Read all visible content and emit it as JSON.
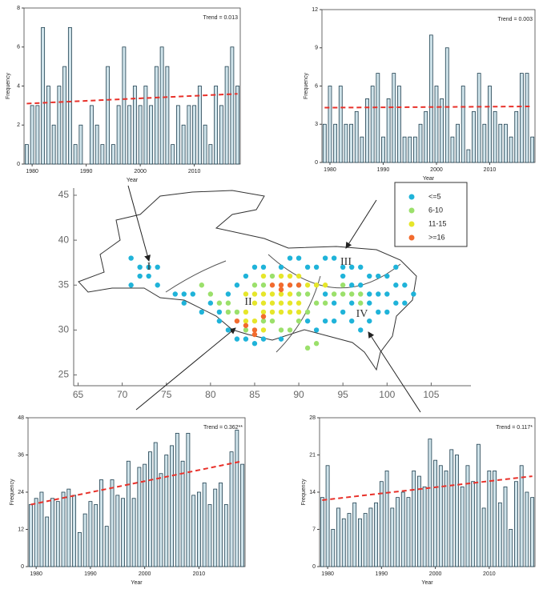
{
  "chart_data": [
    {
      "type": "bar",
      "ylabel": "Frequency",
      "xlabel": "Year",
      "annotation": "Trend = 0.013",
      "color": "#cfe3ea",
      "x": [
        1979,
        1980,
        1981,
        1982,
        1983,
        1984,
        1985,
        1986,
        1987,
        1988,
        1989,
        1990,
        1991,
        1992,
        1993,
        1994,
        1995,
        1996,
        1997,
        1998,
        1999,
        2000,
        2001,
        2002,
        2003,
        2004,
        2005,
        2006,
        2007,
        2008,
        2009,
        2010,
        2011,
        2012,
        2013,
        2014,
        2015,
        2016,
        2017,
        2018
      ],
      "values": [
        1,
        3,
        3,
        7,
        4,
        2,
        4,
        5,
        7,
        1,
        2,
        0,
        3,
        2,
        1,
        5,
        1,
        3,
        6,
        3,
        4,
        3,
        4,
        3,
        5,
        6,
        5,
        1,
        3,
        2,
        3,
        3,
        4,
        2,
        1,
        4,
        3,
        5,
        6,
        4
      ],
      "trend": {
        "x": [
          1979,
          2018
        ],
        "values": [
          3.1,
          3.6
        ],
        "color": "#e8312a"
      },
      "xlim": [
        1978.5,
        2018.5
      ],
      "xticks": [
        1980,
        1990,
        2000,
        2010
      ],
      "ylim": [
        0,
        8
      ],
      "yticks": [
        0,
        2,
        4,
        6,
        8
      ]
    },
    {
      "type": "bar",
      "ylabel": "Frequency",
      "xlabel": "Year",
      "annotation": "Trend = 0.003",
      "color": "#cfe3ea",
      "x": [
        1979,
        1980,
        1981,
        1982,
        1983,
        1984,
        1985,
        1986,
        1987,
        1988,
        1989,
        1990,
        1991,
        1992,
        1993,
        1994,
        1995,
        1996,
        1997,
        1998,
        1999,
        2000,
        2001,
        2002,
        2003,
        2004,
        2005,
        2006,
        2007,
        2008,
        2009,
        2010,
        2011,
        2012,
        2013,
        2014,
        2015,
        2016,
        2017,
        2018
      ],
      "values": [
        3,
        6,
        3,
        6,
        3,
        3,
        4,
        2,
        5,
        6,
        7,
        2,
        5,
        7,
        6,
        2,
        2,
        2,
        3,
        4,
        10,
        6,
        5,
        9,
        2,
        3,
        6,
        1,
        4,
        7,
        3,
        6,
        4,
        3,
        3,
        2,
        4,
        7,
        7,
        2
      ],
      "trend": {
        "x": [
          1979,
          2018
        ],
        "values": [
          4.3,
          4.4
        ],
        "color": "#e8312a"
      },
      "xlim": [
        1978.5,
        2018.5
      ],
      "xticks": [
        1980,
        1990,
        2000,
        2010
      ],
      "ylim": [
        0,
        12
      ],
      "yticks": [
        0,
        3,
        6,
        9,
        12
      ]
    },
    {
      "type": "scatter",
      "xlim": [
        64.5,
        109.5
      ],
      "ylim": [
        23.8,
        45.8
      ],
      "xticks": [
        65,
        70,
        75,
        80,
        85,
        90,
        95,
        100,
        105
      ],
      "yticks": [
        25,
        30,
        35,
        40,
        45
      ],
      "annotations": [
        "I",
        "II",
        "III",
        "IV"
      ],
      "series": [
        {
          "name": "<=5",
          "color": "#1fb3d9",
          "x": [
            71,
            72,
            73,
            74,
            72,
            73,
            71,
            74,
            76,
            77,
            78,
            77,
            79,
            80,
            81,
            81,
            82,
            83,
            84,
            85,
            86,
            88,
            90,
            91,
            92,
            93,
            94,
            95,
            96,
            97,
            98,
            99,
            100,
            101,
            102,
            103,
            102,
            101,
            100,
            99,
            98,
            97,
            96,
            95,
            94,
            93,
            92,
            91,
            96,
            97,
            98,
            99,
            100,
            98,
            96,
            94,
            93,
            95,
            101,
            82,
            83,
            84,
            85,
            86,
            88,
            89,
            90
          ],
          "values": [
            38,
            37,
            37,
            37,
            36,
            36,
            35,
            35,
            34,
            34,
            34,
            33,
            32,
            33,
            32,
            31,
            30,
            29,
            29,
            28.5,
            29,
            29,
            35,
            37,
            37,
            38,
            38,
            37,
            37,
            37,
            36,
            36,
            36,
            35,
            35,
            34,
            33,
            33,
            32,
            32,
            31,
            30,
            31,
            32,
            31,
            31,
            30,
            31,
            35,
            35,
            34,
            34,
            34,
            33,
            33,
            33,
            34,
            36,
            37,
            34,
            35,
            36,
            37,
            37,
            37,
            38,
            38
          ]
        },
        {
          "name": "6-10",
          "color": "#9be06b",
          "x": [
            79,
            80,
            81,
            82,
            82,
            83,
            84,
            86,
            87,
            88,
            89,
            90,
            91,
            92,
            93,
            94,
            95,
            96,
            97,
            90,
            91,
            86,
            85,
            87,
            91,
            92,
            95,
            97
          ],
          "values": [
            35,
            34,
            33,
            33,
            32,
            32,
            30,
            31,
            31,
            30,
            30,
            31,
            32,
            33,
            33,
            34,
            34,
            34,
            33,
            34,
            34,
            35,
            35,
            36,
            28,
            28.5,
            35,
            34
          ]
        },
        {
          "name": "11-15",
          "color": "#e6e62a",
          "x": [
            84,
            85,
            86,
            87,
            88,
            89,
            85,
            86,
            87,
            88,
            89,
            90,
            86,
            87,
            88,
            89,
            90,
            84,
            84,
            86,
            88,
            89,
            90,
            91,
            92,
            93,
            86,
            85
          ],
          "values": [
            34,
            34,
            34,
            34,
            34,
            34,
            33,
            33,
            33,
            33,
            33,
            33,
            32,
            32,
            32,
            32,
            32,
            32,
            31,
            36,
            36,
            36,
            36,
            35,
            35,
            35,
            30,
            31
          ]
        },
        {
          "name": ">=16",
          "color": "#f26b2e",
          "x": [
            87,
            88,
            89,
            90,
            88,
            83,
            84,
            85,
            85,
            86
          ],
          "values": [
            35,
            35,
            35,
            35,
            34.5,
            31,
            30.5,
            30,
            29.5,
            31.5
          ]
        }
      ]
    },
    {
      "type": "bar",
      "ylabel": "Frequency",
      "xlabel": "Year",
      "annotation": "Trend = 0.362**",
      "color": "#cfe3ea",
      "x": [
        1979,
        1980,
        1981,
        1982,
        1983,
        1984,
        1985,
        1986,
        1987,
        1988,
        1989,
        1990,
        1991,
        1992,
        1993,
        1994,
        1995,
        1996,
        1997,
        1998,
        1999,
        2000,
        2001,
        2002,
        2003,
        2004,
        2005,
        2006,
        2007,
        2008,
        2009,
        2010,
        2011,
        2012,
        2013,
        2014,
        2015,
        2016,
        2017,
        2018
      ],
      "values": [
        20,
        22,
        24,
        16,
        22,
        21,
        24,
        25,
        23,
        11,
        17,
        21,
        20,
        28,
        13,
        28,
        23,
        22,
        34,
        22,
        32,
        33,
        37,
        40,
        30,
        36,
        39,
        43,
        34,
        43,
        23,
        24,
        27,
        20,
        25,
        27,
        20,
        37,
        44,
        33
      ],
      "trend": {
        "x": [
          1979,
          2018
        ],
        "values": [
          20,
          34
        ],
        "color": "#e8312a"
      },
      "xlim": [
        1978.5,
        2018.5
      ],
      "xticks": [
        1980,
        1990,
        2000,
        2010
      ],
      "ylim": [
        0,
        48
      ],
      "yticks": [
        0,
        12,
        24,
        36,
        48
      ]
    },
    {
      "type": "bar",
      "ylabel": "Frequency",
      "xlabel": "Year",
      "annotation": "Trend = 0.117*",
      "color": "#cfe3ea",
      "x": [
        1979,
        1980,
        1981,
        1982,
        1983,
        1984,
        1985,
        1986,
        1987,
        1988,
        1989,
        1990,
        1991,
        1992,
        1993,
        1994,
        1995,
        1996,
        1997,
        1998,
        1999,
        2000,
        2001,
        2002,
        2003,
        2004,
        2005,
        2006,
        2007,
        2008,
        2009,
        2010,
        2011,
        2012,
        2013,
        2014,
        2015,
        2016,
        2017,
        2018
      ],
      "values": [
        13,
        19,
        7,
        11,
        9,
        10,
        12,
        9,
        10,
        11,
        12,
        16,
        18,
        11,
        13,
        14,
        13,
        18,
        17,
        15,
        24,
        20,
        19,
        18,
        22,
        21,
        15,
        19,
        16,
        23,
        11,
        18,
        18,
        12,
        15,
        7,
        16,
        19,
        14,
        13
      ],
      "trend": {
        "x": [
          1979,
          2018
        ],
        "values": [
          12.5,
          17
        ],
        "color": "#e8312a"
      },
      "xlim": [
        1978.5,
        2018.5
      ],
      "xticks": [
        1980,
        1990,
        2000,
        2010
      ],
      "ylim": [
        0,
        28
      ],
      "yticks": [
        0,
        7,
        14,
        21,
        28
      ]
    }
  ]
}
